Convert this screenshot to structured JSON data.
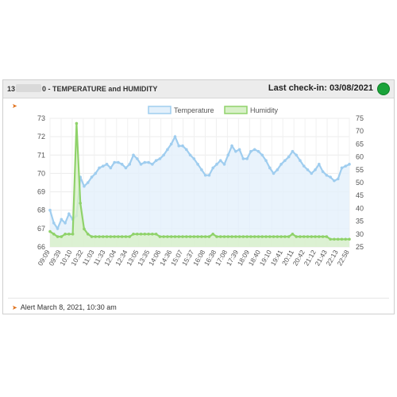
{
  "header": {
    "title_prefix": "13",
    "title_suffix": "0 - TEMPERATURE and HUMIDITY",
    "checkin_text": "Last check-in: 03/08/2021",
    "status_color": "#1aa33a"
  },
  "alert": {
    "text": "Alert March 8, 2021, 10:30 am"
  },
  "chart_data": {
    "type": "line",
    "legend_position": "top-center",
    "grid": true,
    "x_labels": [
      "09:09",
      "09:39",
      "10:10",
      "10:32",
      "11:03",
      "11:33",
      "12:04",
      "12:34",
      "13:05",
      "13:35",
      "14:06",
      "14:36",
      "15:07",
      "15:37",
      "16:08",
      "16:38",
      "17:08",
      "17:39",
      "18:09",
      "18:40",
      "19:10",
      "19:41",
      "20:11",
      "20:42",
      "21:12",
      "21:43",
      "22:13",
      "22:58"
    ],
    "y_left": {
      "min": 66,
      "max": 73,
      "ticks": [
        66,
        67,
        68,
        69,
        70,
        71,
        72,
        73
      ]
    },
    "y_right": {
      "min": 25,
      "max": 75,
      "ticks": [
        25,
        30,
        35,
        40,
        45,
        50,
        55,
        60,
        65,
        70,
        75
      ]
    },
    "series": [
      {
        "name": "Temperature",
        "axis": "left",
        "color": "#9fcdef",
        "fill": "#e3f0fb",
        "values": [
          68.0,
          67.3,
          67.0,
          67.5,
          67.3,
          67.8,
          67.5,
          67.7,
          69.8,
          69.3,
          69.5,
          69.8,
          70.0,
          70.3,
          70.4,
          70.5,
          70.3,
          70.6,
          70.6,
          70.5,
          70.3,
          70.5,
          71.0,
          70.8,
          70.5,
          70.6,
          70.6,
          70.5,
          70.7,
          70.8,
          71.0,
          71.3,
          71.6,
          72.0,
          71.5,
          71.5,
          71.3,
          71.0,
          70.8,
          70.5,
          70.2,
          69.9,
          69.9,
          70.3,
          70.5,
          70.7,
          70.5,
          71.0,
          71.5,
          71.2,
          71.3,
          70.8,
          70.8,
          71.2,
          71.3,
          71.2,
          71.0,
          70.7,
          70.3,
          70.0,
          70.2,
          70.5,
          70.7,
          70.9,
          71.2,
          71.0,
          70.7,
          70.4,
          70.2,
          70.0,
          70.2,
          70.5,
          70.1,
          69.9,
          69.8,
          69.6,
          69.7,
          70.3,
          70.4,
          70.5
        ]
      },
      {
        "name": "Humidity",
        "axis": "right",
        "color": "#8fd26a",
        "fill": "#d8f0c8",
        "values": [
          31,
          30,
          29,
          29,
          30,
          30,
          30,
          73,
          42,
          32,
          30,
          29,
          29,
          29,
          29,
          29,
          29,
          29,
          29,
          29,
          29,
          29,
          30,
          30,
          30,
          30,
          30,
          30,
          30,
          29,
          29,
          29,
          29,
          29,
          29,
          29,
          29,
          29,
          29,
          29,
          29,
          29,
          29,
          30,
          29,
          29,
          29,
          29,
          29,
          29,
          29,
          29,
          29,
          29,
          29,
          29,
          29,
          29,
          29,
          29,
          29,
          29,
          29,
          29,
          30,
          29,
          29,
          29,
          29,
          29,
          29,
          29,
          29,
          29,
          28,
          28,
          28,
          28,
          28,
          28
        ]
      }
    ]
  }
}
